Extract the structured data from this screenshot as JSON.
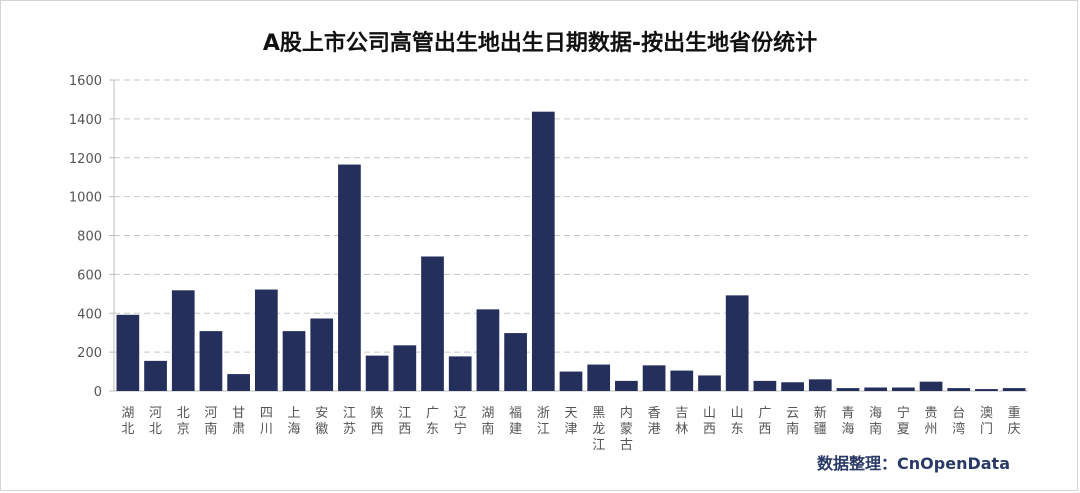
{
  "chart_data": {
    "type": "bar",
    "title": "A股上市公司高管出生地出生日期数据-按出生地省份统计",
    "source_label": "数据整理：CnOpenData",
    "xlabel": "",
    "ylabel": "",
    "ylim": [
      0,
      1600
    ],
    "yticks": [
      0,
      200,
      400,
      600,
      800,
      1000,
      1200,
      1400,
      1600
    ],
    "grid": true,
    "bar_color": "#242f5c",
    "categories": [
      "湖北",
      "河北",
      "北京",
      "河南",
      "甘肃",
      "四川",
      "上海",
      "安徽",
      "江苏",
      "陕西",
      "江西",
      "广东",
      "辽宁",
      "湖南",
      "福建",
      "浙江",
      "天津",
      "黑龙江",
      "内蒙古",
      "香港",
      "吉林",
      "山西",
      "山东",
      "广西",
      "云南",
      "新疆",
      "青海",
      "海南",
      "宁夏",
      "贵州",
      "台湾",
      "澳门",
      "重庆"
    ],
    "values": [
      392,
      155,
      518,
      308,
      87,
      522,
      308,
      373,
      1165,
      182,
      235,
      692,
      178,
      420,
      298,
      1437,
      100,
      136,
      52,
      132,
      105,
      80,
      492,
      52,
      45,
      60,
      15,
      18,
      18,
      48,
      15,
      10,
      15
    ]
  }
}
